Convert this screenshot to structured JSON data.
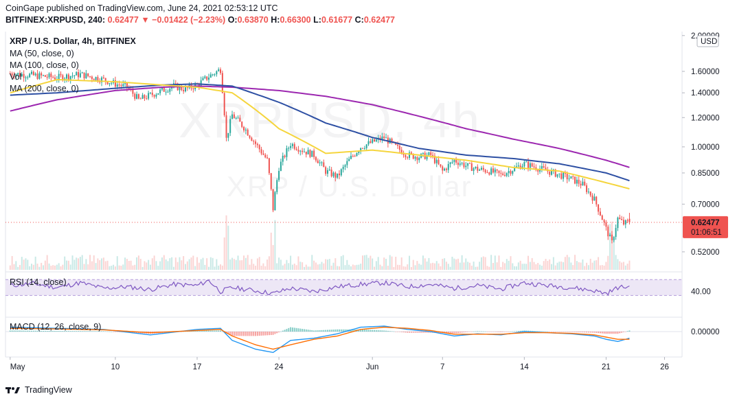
{
  "header": {
    "publish_line": "CoinGape published on TradingView.com, June 24, 2021 02:53:12 UTC",
    "symbol": "BITFINEX:XRPUSD, 240",
    "last": "0.62477",
    "change": "▼ −0.01422 (−2.23%)",
    "ohlc": [
      {
        "label": "O:",
        "value": "0.63870"
      },
      {
        "label": "H:",
        "value": "0.66300"
      },
      {
        "label": "L:",
        "value": "0.61677"
      },
      {
        "label": "C:",
        "value": "0.62477"
      }
    ]
  },
  "legend": {
    "title": "XRP / U.S. Dollar, 4h, BITFINEX",
    "ma50": "MA (50, close, 0)",
    "ma100": "MA (100, close, 0)",
    "vol": "Vol",
    "ma200": "MA (200, close, 0)",
    "rsi": "RSI (14, close)",
    "macd": "MACD (12, 26, close, 9)"
  },
  "watermark": {
    "line1": "XRPUSD, 4h",
    "line2": "XRP / U.S. Dollar"
  },
  "footer": {
    "brand": "TradingView"
  },
  "colors": {
    "up": "#26a69a",
    "down": "#ef5350",
    "ma50": "#f5d53d",
    "ma100": "#2d4fa3",
    "ma200": "#9c27b0",
    "rsi": "#7e57c2",
    "rsi_band": "#ede7f6",
    "macd": "#2196f3",
    "signal": "#ff6d00",
    "price_tag": "#ef5350",
    "volume": "#d1d4dc"
  },
  "chart_data": {
    "type": "candlestick",
    "title": "XRP / U.S. Dollar, 4h, BITFINEX",
    "price_axis": {
      "unit": "USD",
      "scale": "log",
      "ticks": [
        "2.00000",
        "1.60000",
        "1.40000",
        "1.20000",
        "1.00000",
        "0.85000",
        "0.70000",
        "0.52000"
      ],
      "tick_values": [
        2.0,
        1.6,
        1.4,
        1.2,
        1.0,
        0.85,
        0.7,
        0.52
      ]
    },
    "last_price": {
      "value": "0.62477",
      "countdown": "01:06:51"
    },
    "time_axis": {
      "labels": [
        "May",
        "10",
        "17",
        "24",
        "Jun",
        "7",
        "14",
        "21",
        "26"
      ],
      "label_days": [
        1,
        10,
        17,
        24,
        32,
        38,
        45,
        52,
        57
      ]
    },
    "price_path_daily": {
      "x_days": [
        1,
        3,
        5,
        7,
        9,
        10,
        11,
        12,
        13,
        14,
        15,
        16,
        17,
        18,
        19,
        19.5,
        20,
        21,
        22,
        23,
        23.5,
        24,
        25,
        26,
        27,
        28,
        29,
        30,
        31,
        32,
        33,
        34,
        35,
        36,
        37,
        38,
        39,
        40,
        41,
        42,
        43,
        44,
        45,
        46,
        47,
        48,
        49,
        50,
        51,
        52,
        52.5,
        53,
        53.5,
        54
      ],
      "close": [
        1.58,
        1.56,
        1.54,
        1.57,
        1.52,
        1.48,
        1.45,
        1.34,
        1.38,
        1.42,
        1.46,
        1.43,
        1.47,
        1.55,
        1.62,
        1.05,
        1.22,
        1.13,
        1.02,
        0.92,
        0.68,
        0.88,
        1.02,
        0.98,
        0.95,
        0.86,
        0.83,
        0.92,
        1.0,
        1.03,
        1.06,
        1.0,
        0.95,
        0.94,
        0.95,
        0.86,
        0.92,
        0.89,
        0.87,
        0.86,
        0.84,
        0.87,
        0.9,
        0.88,
        0.86,
        0.84,
        0.82,
        0.79,
        0.72,
        0.6,
        0.55,
        0.64,
        0.62,
        0.62477
      ]
    },
    "indicators": {
      "ma50": {
        "x_days": [
          1,
          5,
          10,
          14,
          17,
          20,
          24,
          28,
          32,
          36,
          40,
          44,
          48,
          52,
          54
        ],
        "values": [
          1.4,
          1.52,
          1.5,
          1.47,
          1.45,
          1.4,
          1.12,
          0.96,
          0.98,
          0.95,
          0.92,
          0.88,
          0.86,
          0.8,
          0.77
        ]
      },
      "ma100": {
        "x_days": [
          1,
          5,
          10,
          14,
          17,
          20,
          24,
          28,
          32,
          36,
          40,
          44,
          48,
          52,
          54
        ],
        "values": [
          1.38,
          1.4,
          1.44,
          1.47,
          1.48,
          1.46,
          1.32,
          1.16,
          1.06,
          0.99,
          0.95,
          0.93,
          0.9,
          0.85,
          0.81
        ]
      },
      "ma200": {
        "x_days": [
          1,
          5,
          10,
          14,
          17,
          20,
          24,
          28,
          32,
          36,
          40,
          44,
          48,
          52,
          54
        ],
        "values": [
          1.25,
          1.34,
          1.42,
          1.45,
          1.46,
          1.45,
          1.42,
          1.37,
          1.3,
          1.21,
          1.12,
          1.05,
          0.99,
          0.92,
          0.88
        ]
      }
    },
    "rsi": {
      "label": "RSI (14, close)",
      "tick": "40.00",
      "band": [
        30,
        70
      ],
      "x_days": [
        1,
        3,
        5,
        7,
        9,
        11,
        13,
        15,
        17,
        18,
        19,
        20,
        22,
        23.5,
        25,
        27,
        29,
        31,
        33,
        35,
        37,
        39,
        41,
        43,
        45,
        47,
        49,
        51,
        52,
        52.5,
        53,
        54
      ],
      "values": [
        55,
        60,
        50,
        62,
        48,
        52,
        45,
        58,
        55,
        68,
        40,
        50,
        42,
        35,
        48,
        40,
        52,
        58,
        62,
        52,
        58,
        48,
        55,
        46,
        62,
        55,
        50,
        42,
        35,
        42,
        50,
        52
      ]
    },
    "macd": {
      "label": "MACD (12, 26, close, 9)",
      "tick": "0.00000",
      "x_days": [
        1,
        5,
        9,
        13,
        17,
        19,
        20,
        22,
        23.5,
        25,
        27,
        29,
        31,
        33,
        35,
        37,
        39,
        41,
        43,
        45,
        47,
        49,
        51,
        52,
        53,
        54
      ],
      "macd": [
        0.02,
        0.015,
        0.01,
        -0.015,
        0.01,
        0.015,
        -0.04,
        -0.08,
        -0.095,
        -0.04,
        -0.03,
        -0.01,
        0.02,
        0.025,
        0.01,
        0.0,
        -0.02,
        -0.01,
        -0.015,
        0.0,
        -0.005,
        -0.01,
        -0.02,
        -0.035,
        -0.045,
        -0.03
      ],
      "signal": [
        0.015,
        0.012,
        0.008,
        -0.005,
        0.005,
        0.01,
        -0.02,
        -0.06,
        -0.08,
        -0.06,
        -0.035,
        -0.02,
        0.01,
        0.02,
        0.015,
        0.005,
        -0.012,
        -0.012,
        -0.012,
        -0.005,
        -0.005,
        -0.008,
        -0.015,
        -0.025,
        -0.035,
        -0.035
      ]
    }
  }
}
